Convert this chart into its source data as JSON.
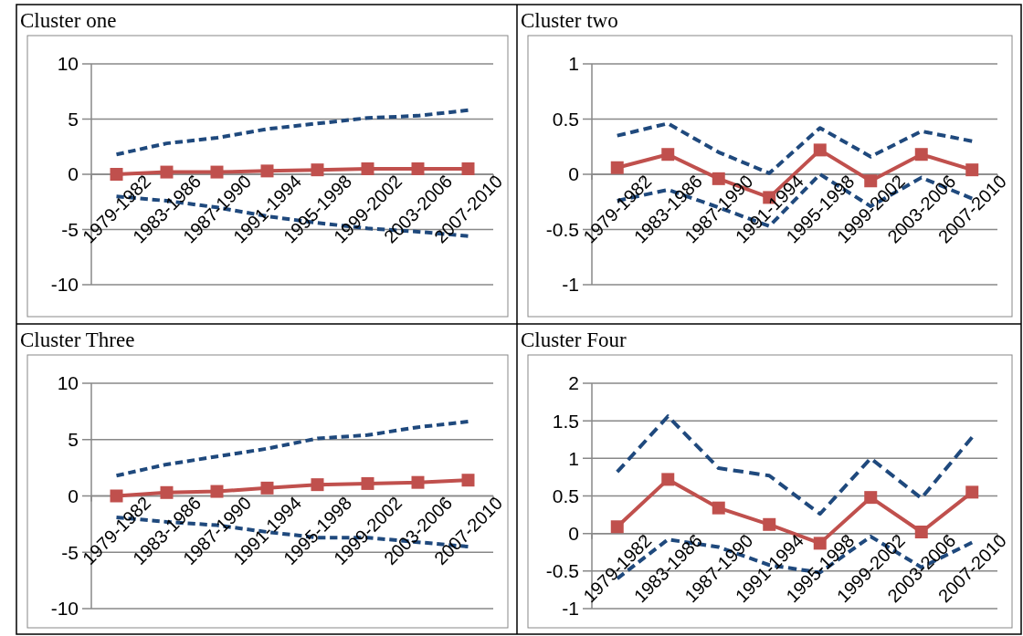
{
  "chart_data": [
    {
      "type": "line",
      "title": "Cluster one",
      "categories": [
        "1979-1982",
        "1983-1986",
        "1987-1990",
        "1991-1994",
        "1995-1998",
        "1999-2002",
        "2003-2006",
        "2007-2010"
      ],
      "ylim": [
        -10,
        10
      ],
      "yticks": [
        -10,
        -5,
        0,
        5,
        10
      ],
      "grid": "y",
      "series": [
        {
          "color": "#1f497d",
          "line_style": "dashed",
          "marker": "none",
          "values": [
            1.8,
            2.8,
            3.3,
            4.1,
            4.6,
            5.1,
            5.3,
            5.8
          ]
        },
        {
          "color": "#c0504d",
          "line_style": "solid",
          "marker": "square",
          "values": [
            0,
            0.2,
            0.2,
            0.3,
            0.4,
            0.5,
            0.5,
            0.5
          ]
        },
        {
          "color": "#1f497d",
          "line_style": "dashed",
          "marker": "none",
          "values": [
            -2.0,
            -2.4,
            -3.0,
            -3.8,
            -4.4,
            -4.9,
            -5.2,
            -5.6
          ]
        }
      ]
    },
    {
      "type": "line",
      "title": "Cluster two",
      "categories": [
        "1979-1982",
        "1983-1986",
        "1987-1990",
        "1991-1994",
        "1995-1998",
        "1999-2002",
        "2003-2006",
        "2007-2010"
      ],
      "ylim": [
        -1,
        1
      ],
      "yticks": [
        -1,
        -0.5,
        0,
        0.5,
        1
      ],
      "grid": "y",
      "series": [
        {
          "color": "#1f497d",
          "line_style": "dashed",
          "marker": "none",
          "values": [
            0.35,
            0.46,
            0.2,
            0.01,
            0.42,
            0.16,
            0.39,
            0.3
          ]
        },
        {
          "color": "#c0504d",
          "line_style": "solid",
          "marker": "square",
          "values": [
            0.06,
            0.18,
            -0.04,
            -0.21,
            0.22,
            -0.06,
            0.18,
            0.04
          ]
        },
        {
          "color": "#1f497d",
          "line_style": "dashed",
          "marker": "none",
          "values": [
            -0.24,
            -0.14,
            -0.3,
            -0.47,
            0.0,
            -0.29,
            -0.03,
            -0.22
          ]
        }
      ]
    },
    {
      "type": "line",
      "title": "Cluster Three",
      "categories": [
        "1979-1982",
        "1983-1986",
        "1987-1990",
        "1991-1994",
        "1995-1998",
        "1999-2002",
        "2003-2006",
        "2007-2010"
      ],
      "ylim": [
        -10,
        10
      ],
      "yticks": [
        -10,
        -5,
        0,
        5,
        10
      ],
      "grid": "y",
      "series": [
        {
          "color": "#1f497d",
          "line_style": "dashed",
          "marker": "none",
          "values": [
            1.8,
            2.8,
            3.5,
            4.2,
            5.1,
            5.4,
            6.1,
            6.6
          ]
        },
        {
          "color": "#c0504d",
          "line_style": "solid",
          "marker": "square",
          "values": [
            0,
            0.3,
            0.4,
            0.7,
            1.0,
            1.1,
            1.2,
            1.4
          ]
        },
        {
          "color": "#1f497d",
          "line_style": "dashed",
          "marker": "none",
          "values": [
            -1.9,
            -2.3,
            -2.6,
            -3.2,
            -3.7,
            -3.7,
            -4.1,
            -4.5
          ]
        }
      ]
    },
    {
      "type": "line",
      "title": "Cluster Four",
      "categories": [
        "1979-1982",
        "1983-1986",
        "1987-1990",
        "1991-1994",
        "1995-1998",
        "1999-2002",
        "2003-2006",
        "2007-2010"
      ],
      "ylim": [
        -1,
        2
      ],
      "yticks": [
        -1,
        -0.5,
        0,
        0.5,
        1,
        1.5,
        2
      ],
      "grid": "y",
      "series": [
        {
          "color": "#1f497d",
          "line_style": "dashed",
          "marker": "none",
          "values": [
            0.82,
            1.56,
            0.87,
            0.77,
            0.26,
            1.0,
            0.47,
            1.28
          ]
        },
        {
          "color": "#c0504d",
          "line_style": "solid",
          "marker": "square",
          "values": [
            0.09,
            0.72,
            0.34,
            0.12,
            -0.13,
            0.48,
            0.02,
            0.55
          ]
        },
        {
          "color": "#1f497d",
          "line_style": "dashed",
          "marker": "none",
          "values": [
            -0.6,
            -0.08,
            -0.18,
            -0.42,
            -0.52,
            -0.04,
            -0.45,
            -0.12
          ]
        }
      ]
    }
  ]
}
